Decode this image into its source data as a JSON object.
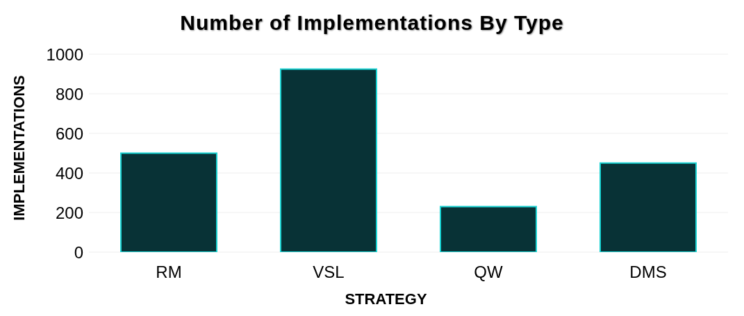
{
  "chart_data": {
    "type": "bar",
    "title": "Number of Implementations By Type",
    "xlabel": "STRATEGY",
    "ylabel": "IMPLEMENTATIONS",
    "categories": [
      "RM",
      "VSL",
      "QW",
      "DMS"
    ],
    "values": [
      500,
      925,
      230,
      450
    ],
    "color": "#083236",
    "ylim": [
      0,
      1000
    ],
    "yticks": [
      0,
      200,
      400,
      600,
      800,
      1000
    ],
    "grid": "y"
  }
}
